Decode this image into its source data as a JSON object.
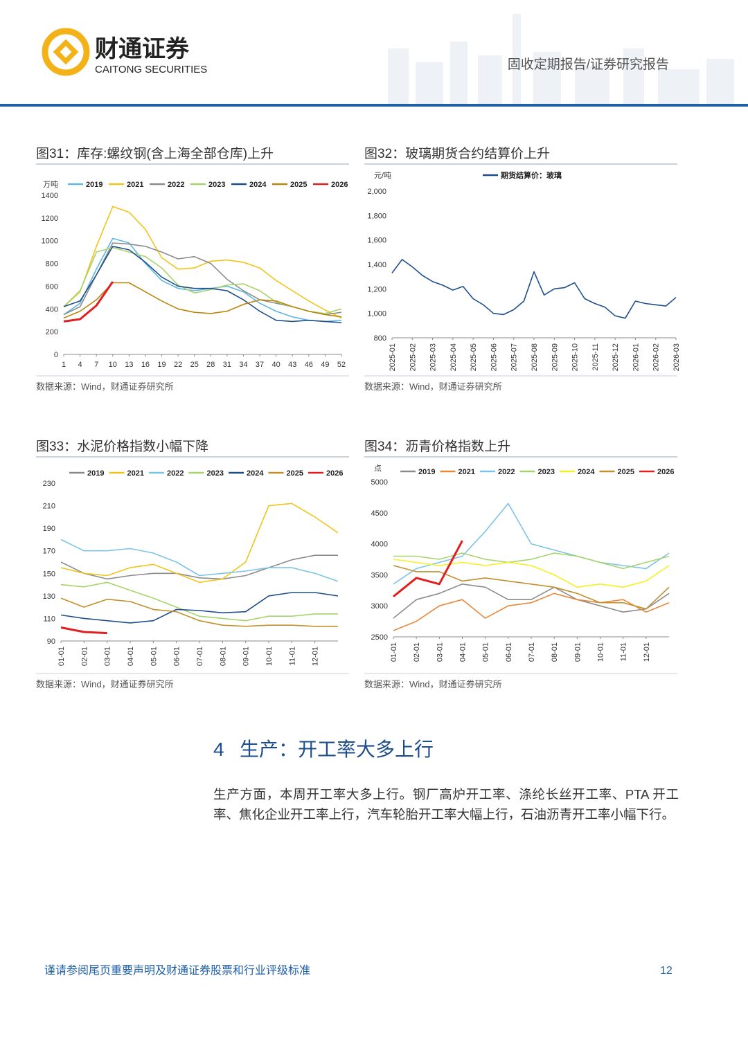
{
  "header": {
    "brand_cn": "财通证券",
    "brand_en": "CAITONG SECURITIES",
    "report_type": "固收定期报告/证券研究报告"
  },
  "chart_data": [
    {
      "type": "line",
      "title": "图31：库存:螺纹钢(含上海全部仓库)上升",
      "source": "数据来源：Wind，财通证券研究所",
      "y_unit": "万吨",
      "x": [
        1,
        4,
        7,
        10,
        13,
        16,
        19,
        22,
        25,
        28,
        31,
        34,
        37,
        40,
        43,
        46,
        49,
        52
      ],
      "xlim": [
        1,
        52
      ],
      "xticks": [
        1,
        4,
        7,
        10,
        13,
        16,
        19,
        22,
        25,
        28,
        31,
        34,
        37,
        40,
        43,
        46,
        49,
        52
      ],
      "ylim": [
        0,
        1400
      ],
      "yticks": [
        0,
        200,
        400,
        600,
        800,
        1000,
        1200,
        1400
      ],
      "series": [
        {
          "name": "2019",
          "color": "#5bb6e6",
          "values": [
            350,
            450,
            750,
            1020,
            980,
            800,
            650,
            580,
            560,
            580,
            600,
            550,
            450,
            380,
            330,
            300,
            290,
            300
          ]
        },
        {
          "name": "2021",
          "color": "#f0c419",
          "values": [
            420,
            550,
            950,
            1300,
            1250,
            1100,
            850,
            750,
            760,
            820,
            830,
            810,
            760,
            650,
            560,
            470,
            390,
            320
          ]
        },
        {
          "name": "2022",
          "color": "#8c8c8c",
          "values": [
            350,
            420,
            700,
            980,
            970,
            950,
            900,
            840,
            860,
            800,
            660,
            560,
            480,
            450,
            420,
            380,
            350,
            370
          ]
        },
        {
          "name": "2023",
          "color": "#a7d36a",
          "values": [
            420,
            560,
            900,
            940,
            900,
            860,
            760,
            610,
            540,
            570,
            610,
            620,
            560,
            460,
            420,
            380,
            360,
            400
          ]
        },
        {
          "name": "2024",
          "color": "#1f4e8c",
          "values": [
            420,
            470,
            700,
            950,
            920,
            810,
            680,
            600,
            580,
            580,
            560,
            480,
            380,
            300,
            290,
            300,
            290,
            280
          ]
        },
        {
          "name": "2025",
          "color": "#b8860b",
          "values": [
            320,
            380,
            480,
            630,
            630,
            550,
            470,
            400,
            370,
            360,
            380,
            440,
            480,
            470,
            420,
            380,
            350,
            330
          ]
        },
        {
          "name": "2026",
          "color": "#e02020",
          "values": [
            290,
            310,
            430,
            640,
            null,
            null,
            null,
            null,
            null,
            null,
            null,
            null,
            null,
            null,
            null,
            null,
            null,
            null
          ]
        }
      ]
    },
    {
      "type": "line",
      "title": "图32：玻璃期货合约结算价上升",
      "source": "数据来源：Wind，财通证券研究所",
      "y_unit": "元/吨",
      "categories": [
        "2025-01",
        null,
        "2025-02",
        null,
        "2025-03",
        null,
        "2025-04",
        null,
        "2025-05",
        null,
        "2025-06",
        null,
        "2025-07",
        null,
        "2025-08",
        null,
        "2025-09",
        null,
        "2025-10",
        null,
        "2025-11",
        null,
        "2025-12",
        null,
        "2026-01",
        null,
        "2026-02",
        null,
        "2026-03"
      ],
      "ylim": [
        800,
        2000
      ],
      "yticks": [
        800,
        {
          "value": 1000,
          "label": "1,000"
        },
        {
          "value": 1200,
          "label": "1,200"
        },
        {
          "value": 1400,
          "label": "1,400"
        },
        {
          "value": 1600,
          "label": "1,600"
        },
        {
          "value": 1800,
          "label": "1,800"
        },
        {
          "value": 2000,
          "label": "2,000"
        }
      ],
      "series": [
        {
          "name": "期货结算价：玻璃",
          "color": "#1f4e8c",
          "values": [
            1330,
            1440,
            1380,
            1310,
            1260,
            1230,
            1190,
            1220,
            1120,
            1070,
            1000,
            990,
            1030,
            1100,
            1340,
            1150,
            1200,
            1210,
            1250,
            1120,
            1080,
            1050,
            980,
            960,
            1100,
            1080,
            1070,
            1060,
            1130
          ]
        }
      ]
    },
    {
      "type": "line",
      "title": "图33：水泥价格指数小幅下降",
      "source": "数据来源：Wind，财通证券研究所",
      "categories": [
        "01-01",
        "02-01",
        "03-01",
        "04-01",
        "05-01",
        "06-01",
        "07-01",
        "08-01",
        "09-01",
        "10-01",
        "11-01",
        "12-01",
        null
      ],
      "ylim": [
        90,
        230
      ],
      "yticks": [
        90,
        110,
        130,
        150,
        170,
        190,
        210,
        230
      ],
      "series": [
        {
          "name": "2019",
          "color": "#8c8c8c",
          "values": [
            160,
            150,
            145,
            148,
            150,
            150,
            146,
            145,
            148,
            155,
            162,
            166,
            166
          ]
        },
        {
          "name": "2021",
          "color": "#f0c419",
          "values": [
            155,
            150,
            148,
            155,
            158,
            150,
            142,
            145,
            160,
            210,
            212,
            200,
            186
          ]
        },
        {
          "name": "2022",
          "color": "#7cc3e8",
          "values": [
            180,
            170,
            170,
            172,
            168,
            160,
            148,
            150,
            152,
            155,
            155,
            150,
            143
          ]
        },
        {
          "name": "2023",
          "color": "#a7d36a",
          "values": [
            140,
            138,
            142,
            135,
            128,
            120,
            112,
            110,
            108,
            112,
            112,
            114,
            114
          ]
        },
        {
          "name": "2024",
          "color": "#1f4e8c",
          "values": [
            113,
            110,
            108,
            106,
            108,
            118,
            117,
            115,
            116,
            130,
            133,
            133,
            130
          ]
        },
        {
          "name": "2025",
          "color": "#c0902a",
          "values": [
            128,
            120,
            127,
            125,
            118,
            116,
            108,
            104,
            103,
            104,
            104,
            103,
            103
          ]
        },
        {
          "name": "2026",
          "color": "#e02020",
          "values": [
            102,
            98,
            97,
            null,
            null,
            null,
            null,
            null,
            null,
            null,
            null,
            null,
            null
          ]
        }
      ]
    },
    {
      "type": "line",
      "title": "图34：沥青价格指数上升",
      "source": "数据来源：Wind，财通证券研究所",
      "y_unit": "点",
      "categories": [
        "01-01",
        "02-01",
        "03-01",
        "04-01",
        "05-01",
        "06-01",
        "07-01",
        "08-01",
        "09-01",
        "10-01",
        "11-01",
        "12-01",
        null
      ],
      "ylim": [
        2500,
        5000
      ],
      "yticks": [
        2500,
        3000,
        3500,
        4000,
        4500,
        5000
      ],
      "series": [
        {
          "name": "2019",
          "color": "#8c8c8c",
          "values": [
            2800,
            3100,
            3200,
            3350,
            3300,
            3100,
            3100,
            3300,
            3100,
            3000,
            2900,
            2950,
            3200
          ]
        },
        {
          "name": "2021",
          "color": "#e8883a",
          "values": [
            2600,
            2750,
            3000,
            3100,
            2800,
            3000,
            3050,
            3200,
            3100,
            3050,
            3100,
            2900,
            3050
          ]
        },
        {
          "name": "2022",
          "color": "#7cc3e8",
          "values": [
            3350,
            3600,
            3700,
            3800,
            4200,
            4650,
            4000,
            3900,
            3800,
            3700,
            3650,
            3600,
            3850
          ]
        },
        {
          "name": "2023",
          "color": "#a7d36a",
          "values": [
            3800,
            3800,
            3750,
            3850,
            3750,
            3700,
            3750,
            3850,
            3800,
            3700,
            3600,
            3700,
            3800
          ]
        },
        {
          "name": "2024",
          "color": "#f5f020",
          "values": [
            3750,
            3700,
            3650,
            3700,
            3650,
            3700,
            3650,
            3500,
            3300,
            3350,
            3300,
            3400,
            3650
          ]
        },
        {
          "name": "2025",
          "color": "#c0902a",
          "values": [
            3650,
            3550,
            3550,
            3400,
            3450,
            3400,
            3350,
            3300,
            3200,
            3050,
            3050,
            2950,
            3300
          ]
        },
        {
          "name": "2026",
          "color": "#e02020",
          "values": [
            3150,
            3450,
            3350,
            4050,
            null,
            null,
            null,
            null,
            null,
            null,
            null,
            null,
            null
          ]
        }
      ]
    }
  ],
  "section": {
    "number": "4",
    "title": "生产：开工率大多上行",
    "paragraph": "生产方面，本周开工率大多上行。钢厂高炉开工率、涤纶长丝开工率、PTA 开工率、焦化企业开工率上行，汽车轮胎开工率大幅上行，石油沥青开工率小幅下行。"
  },
  "footer": {
    "disclaimer": "谨请参阅尾页重要声明及财通证券股票和行业评级标准",
    "page": "12"
  }
}
